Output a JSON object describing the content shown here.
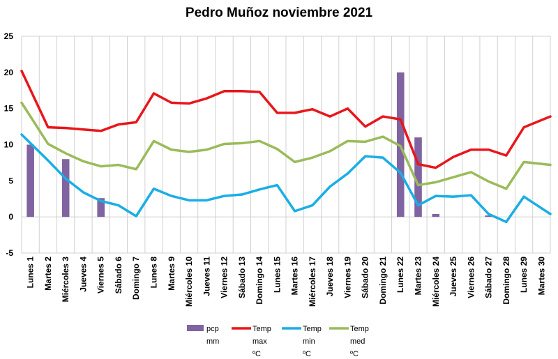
{
  "chart_data": {
    "type": "bar",
    "title": "Pedro Muñoz noviembre 2021",
    "xlabel": "",
    "ylabel": "",
    "ylim": [
      -5,
      25
    ],
    "yticks": [
      -5,
      0,
      5,
      10,
      15,
      20,
      25
    ],
    "grid": "vertical category lines, horizontal at 0",
    "legend_position": "bottom",
    "categories": [
      "Lunes 1",
      "Martes 2",
      "Miércoles 3",
      "Jueves 4",
      "Viernes 5",
      "Sábado 6",
      "Domingo 7",
      "Lunes 8",
      "Martes 9",
      "Miércoles 10",
      "Jueves 11",
      "Viernes 12",
      "Sábado 13",
      "Domingo 14",
      "Lunes 15",
      "Martes 16",
      "Miércoles 17",
      "Jueves 18",
      "Viernes 19",
      "Sábado 20",
      "Domingo 21",
      "Lunes 22",
      "Martes 23",
      "Miércoles 24",
      "Jueves 25",
      "Viernes 26",
      "Sábado 27",
      "Domingo 28",
      "Lunes 29",
      "Martes 30"
    ],
    "series": [
      {
        "name": "pcp mm",
        "legend_lines": [
          "pcp",
          "mm"
        ],
        "type": "bar",
        "color": "#8064a2",
        "values": [
          10,
          0,
          8,
          0,
          2.6,
          0,
          0,
          0,
          0,
          0,
          0,
          0,
          0,
          0,
          0,
          0,
          0,
          0,
          0,
          0,
          0,
          20,
          11,
          0.4,
          0,
          0,
          0.2,
          0,
          0,
          0
        ]
      },
      {
        "name": "Temp max ºC",
        "legend_lines": [
          "Temp",
          "max",
          "ºC"
        ],
        "type": "line",
        "color": "#e8161b",
        "values": [
          20.2,
          12.4,
          12.3,
          12.1,
          11.9,
          12.8,
          13.1,
          17.1,
          15.8,
          15.7,
          16.4,
          17.4,
          17.4,
          17.3,
          14.4,
          14.4,
          14.9,
          13.9,
          15.0,
          12.5,
          13.9,
          13.5,
          7.3,
          6.8,
          8.3,
          9.3,
          9.3,
          8.5,
          12.4,
          13.9
        ]
      },
      {
        "name": "Temp min ºC",
        "legend_lines": [
          "Temp",
          "min",
          "ºC"
        ],
        "type": "line",
        "color": "#19aee5",
        "values": [
          11.4,
          7.8,
          5.3,
          3.4,
          2.2,
          1.6,
          0.1,
          3.9,
          2.9,
          2.3,
          2.3,
          2.9,
          3.1,
          3.8,
          4.4,
          0.8,
          1.6,
          4.2,
          6.0,
          8.4,
          8.2,
          6.1,
          1.6,
          2.9,
          2.8,
          3.0,
          0.4,
          -0.7,
          2.8,
          0.4
        ]
      },
      {
        "name": "Temp med ºC",
        "legend_lines": [
          "Temp",
          "med",
          "ºC"
        ],
        "type": "line",
        "color": "#9bbb59",
        "values": [
          15.8,
          10.1,
          8.8,
          7.7,
          7.0,
          7.2,
          6.6,
          10.5,
          9.3,
          9.0,
          9.3,
          10.1,
          10.2,
          10.5,
          9.4,
          7.6,
          8.2,
          9.1,
          10.5,
          10.4,
          11.1,
          9.8,
          4.4,
          4.8,
          5.5,
          6.2,
          4.9,
          3.9,
          7.6,
          7.2
        ]
      }
    ]
  }
}
